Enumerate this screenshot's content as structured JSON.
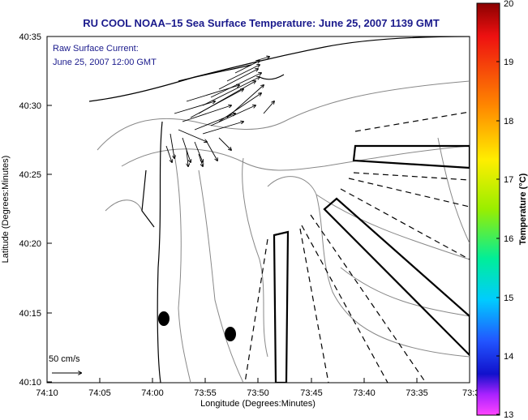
{
  "title": "RU COOL   NOAA–15  Sea Surface Temperature:  June 25, 2007 1139 GMT",
  "annotation": {
    "line1": "Raw Surface Current:",
    "line2": "June 25, 2007 12:00 GMT"
  },
  "scale_label": "50 cm/s",
  "axes": {
    "x_label": "Longitude (Degrees:Minutes)",
    "y_label": "Latitude (Degrees:Minutes)",
    "x_ticks": [
      "74:10",
      "74:05",
      "74:00",
      "73:55",
      "73:50",
      "73:45",
      "73:40",
      "73:35",
      "73:3"
    ],
    "y_ticks": [
      "40:35",
      "40:30",
      "40:25",
      "40:20",
      "40:15",
      "40:10"
    ]
  },
  "colorbar": {
    "label": "Temperature (°C)",
    "ticks": [
      "20",
      "19",
      "18",
      "17",
      "16",
      "15",
      "14",
      "13"
    ],
    "range": [
      13,
      20
    ]
  },
  "colors": {
    "title_text": "#1a1a8c",
    "contour": "#888888",
    "coast": "#000000"
  }
}
